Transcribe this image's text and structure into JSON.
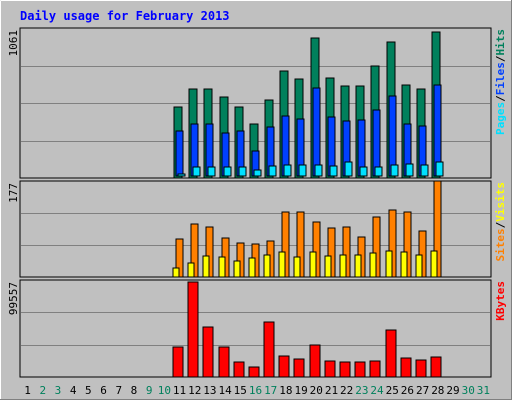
{
  "title": "Daily usage for February 2013",
  "colors": {
    "background": "#c0c0c0",
    "plot": "#c0c0c0",
    "title": "#0000ff",
    "hits": "#00805c",
    "files": "#0040ff",
    "pages": "#00e0ff",
    "visits": "#ffff00",
    "sites": "#ff8000",
    "kbytes": "#ff0000",
    "weekend_day": "#00805c"
  },
  "chart_data": [
    {
      "type": "bar",
      "name": "hits-files-pages",
      "ymax_label": "1061",
      "ylim": [
        0,
        1061
      ],
      "legend": [
        {
          "key": "pages",
          "label": "Pages"
        },
        {
          "key": "sep",
          "label": "/"
        },
        {
          "key": "files",
          "label": "Files"
        },
        {
          "key": "sep",
          "label": "/"
        },
        {
          "key": "hits",
          "label": "Hits"
        }
      ],
      "series": [
        {
          "key": "hits",
          "name": "Hits",
          "values": [
            0,
            0,
            0,
            0,
            0,
            0,
            0,
            0,
            0,
            0,
            500,
            630,
            630,
            570,
            500,
            380,
            550,
            760,
            700,
            990,
            710,
            650,
            650,
            790,
            960,
            660,
            630,
            1030,
            0,
            0,
            0
          ]
        },
        {
          "key": "files",
          "name": "Files",
          "values": [
            0,
            0,
            0,
            0,
            0,
            0,
            0,
            0,
            0,
            0,
            330,
            380,
            380,
            320,
            330,
            190,
            360,
            440,
            420,
            640,
            430,
            400,
            410,
            480,
            580,
            380,
            370,
            660,
            0,
            0,
            0
          ]
        },
        {
          "key": "pages",
          "name": "Pages",
          "values": [
            0,
            0,
            0,
            0,
            0,
            0,
            0,
            0,
            0,
            0,
            25,
            80,
            80,
            75,
            80,
            60,
            85,
            95,
            90,
            95,
            85,
            110,
            80,
            80,
            95,
            100,
            90,
            110,
            0,
            0,
            0
          ]
        }
      ]
    },
    {
      "type": "bar",
      "name": "sites-visits",
      "ymax_label": "177",
      "ylim": [
        0,
        177
      ],
      "legend": [
        {
          "key": "sites",
          "label": "Sites"
        },
        {
          "key": "sep",
          "label": "/"
        },
        {
          "key": "visits",
          "label": "Visits"
        }
      ],
      "series": [
        {
          "key": "sites",
          "name": "Sites",
          "values": [
            0,
            0,
            0,
            0,
            0,
            0,
            0,
            0,
            0,
            0,
            70,
            98,
            92,
            72,
            63,
            60,
            67,
            119,
            119,
            102,
            91,
            93,
            73,
            110,
            124,
            120,
            84,
            177,
            0,
            0,
            0
          ]
        },
        {
          "key": "visits",
          "name": "Visits",
          "values": [
            0,
            0,
            0,
            0,
            0,
            0,
            0,
            0,
            0,
            0,
            17,
            25,
            38,
            37,
            29,
            35,
            41,
            47,
            37,
            47,
            39,
            40,
            40,
            45,
            48,
            46,
            41,
            48,
            0,
            0,
            0
          ]
        }
      ]
    },
    {
      "type": "bar",
      "name": "kbytes",
      "ymax_label": "99557",
      "ylim": [
        0,
        99557
      ],
      "legend": [
        {
          "key": "kbytes",
          "label": "KBytes"
        }
      ],
      "series": [
        {
          "key": "kbytes",
          "name": "KBytes",
          "values": [
            0,
            0,
            0,
            0,
            0,
            0,
            0,
            0,
            0,
            0,
            31000,
            97000,
            51000,
            31000,
            15000,
            10000,
            56000,
            22000,
            18000,
            33000,
            16000,
            15000,
            15000,
            16000,
            48000,
            19000,
            17000,
            21000,
            0,
            0,
            0
          ]
        }
      ]
    }
  ],
  "days": [
    {
      "label": "1",
      "weekend": false
    },
    {
      "label": "2",
      "weekend": true
    },
    {
      "label": "3",
      "weekend": true
    },
    {
      "label": "4",
      "weekend": false
    },
    {
      "label": "5",
      "weekend": false
    },
    {
      "label": "6",
      "weekend": false
    },
    {
      "label": "7",
      "weekend": false
    },
    {
      "label": "8",
      "weekend": false
    },
    {
      "label": "9",
      "weekend": true
    },
    {
      "label": "10",
      "weekend": true
    },
    {
      "label": "11",
      "weekend": false
    },
    {
      "label": "12",
      "weekend": false
    },
    {
      "label": "13",
      "weekend": false
    },
    {
      "label": "14",
      "weekend": false
    },
    {
      "label": "15",
      "weekend": false
    },
    {
      "label": "16",
      "weekend": true
    },
    {
      "label": "17",
      "weekend": true
    },
    {
      "label": "18",
      "weekend": false
    },
    {
      "label": "19",
      "weekend": false
    },
    {
      "label": "20",
      "weekend": false
    },
    {
      "label": "21",
      "weekend": false
    },
    {
      "label": "22",
      "weekend": false
    },
    {
      "label": "23",
      "weekend": true
    },
    {
      "label": "24",
      "weekend": true
    },
    {
      "label": "25",
      "weekend": false
    },
    {
      "label": "26",
      "weekend": false
    },
    {
      "label": "27",
      "weekend": false
    },
    {
      "label": "28",
      "weekend": false
    },
    {
      "label": "29",
      "weekend": false
    },
    {
      "label": "30",
      "weekend": true
    },
    {
      "label": "31",
      "weekend": true
    }
  ]
}
